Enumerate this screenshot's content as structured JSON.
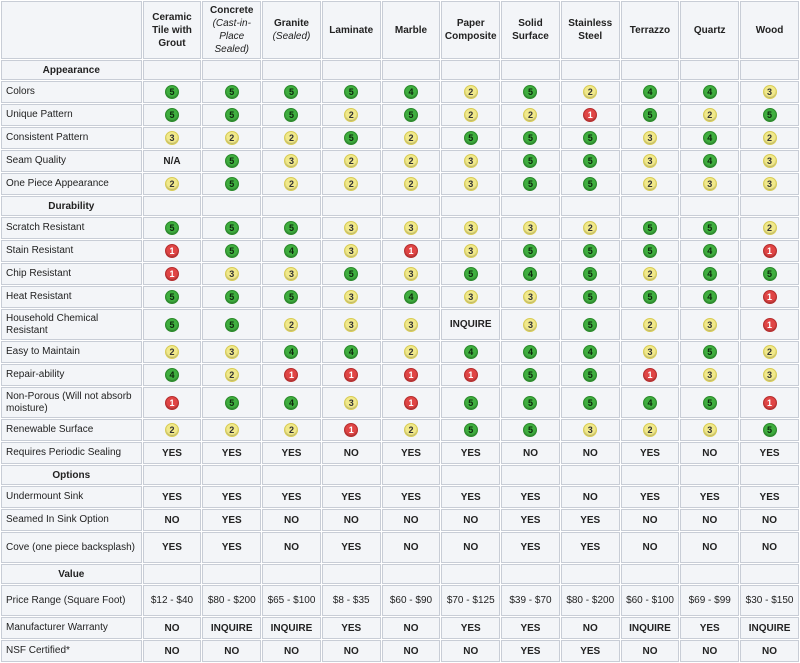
{
  "materials": [
    {
      "name": "Ceramic Tile with Grout",
      "sub": ""
    },
    {
      "name": "Concrete",
      "sub": "(Cast-in-Place Sealed)"
    },
    {
      "name": "Granite",
      "sub": "(Sealed)"
    },
    {
      "name": "Laminate",
      "sub": ""
    },
    {
      "name": "Marble",
      "sub": ""
    },
    {
      "name": "Paper Composite",
      "sub": ""
    },
    {
      "name": "Solid Surface",
      "sub": ""
    },
    {
      "name": "Stainless Steel",
      "sub": ""
    },
    {
      "name": "Terrazzo",
      "sub": ""
    },
    {
      "name": "Quartz",
      "sub": ""
    },
    {
      "name": "Wood",
      "sub": ""
    }
  ],
  "rating_colors": {
    "5": "#3fae3f",
    "4": "#3fae3f",
    "3": "#f1e98a",
    "2": "#f1e98a",
    "1": "#e04545"
  },
  "sections": [
    {
      "title": "Appearance",
      "rows": [
        {
          "label": "Colors",
          "values": [
            "5",
            "5",
            "5",
            "5",
            "4",
            "2",
            "5",
            "2",
            "4",
            "4",
            "3"
          ]
        },
        {
          "label": "Unique Pattern",
          "values": [
            "5",
            "5",
            "5",
            "2",
            "5",
            "2",
            "2",
            "1",
            "5",
            "2",
            "5"
          ]
        },
        {
          "label": "Consistent Pattern",
          "values": [
            "3",
            "2",
            "2",
            "5",
            "2",
            "5",
            "5",
            "5",
            "3",
            "4",
            "2"
          ]
        },
        {
          "label": "Seam Quality",
          "values": [
            "N/A",
            "5",
            "3",
            "2",
            "2",
            "3",
            "5",
            "5",
            "3",
            "4",
            "3"
          ]
        },
        {
          "label": "One Piece Appearance",
          "values": [
            "2",
            "5",
            "2",
            "2",
            "2",
            "3",
            "5",
            "5",
            "2",
            "3",
            "3"
          ]
        }
      ]
    },
    {
      "title": "Durability",
      "rows": [
        {
          "label": "Scratch Resistant",
          "values": [
            "5",
            "5",
            "5",
            "3",
            "3",
            "3",
            "3",
            "2",
            "5",
            "5",
            "2"
          ]
        },
        {
          "label": "Stain Resistant",
          "values": [
            "1",
            "5",
            "4",
            "3",
            "1",
            "3",
            "5",
            "5",
            "5",
            "4",
            "1"
          ]
        },
        {
          "label": "Chip Resistant",
          "values": [
            "1",
            "3",
            "3",
            "5",
            "3",
            "5",
            "4",
            "5",
            "2",
            "4",
            "5"
          ]
        },
        {
          "label": "Heat Resistant",
          "values": [
            "5",
            "5",
            "5",
            "3",
            "4",
            "3",
            "3",
            "5",
            "5",
            "4",
            "1"
          ]
        },
        {
          "label": "Household Chemical Resistant",
          "values": [
            "5",
            "5",
            "2",
            "3",
            "3",
            "INQUIRE",
            "3",
            "5",
            "2",
            "3",
            "1"
          ],
          "tall": true
        },
        {
          "label": "Easy to Maintain",
          "values": [
            "2",
            "3",
            "4",
            "4",
            "2",
            "4",
            "4",
            "4",
            "3",
            "5",
            "2"
          ]
        },
        {
          "label": "Repair-ability",
          "values": [
            "4",
            "2",
            "1",
            "1",
            "1",
            "1",
            "5",
            "5",
            "1",
            "3",
            "3"
          ]
        },
        {
          "label": "Non-Porous (Will not absorb moisture)",
          "values": [
            "1",
            "5",
            "4",
            "3",
            "1",
            "5",
            "5",
            "5",
            "4",
            "5",
            "1"
          ],
          "tall": true
        },
        {
          "label": "Renewable Surface",
          "values": [
            "2",
            "2",
            "2",
            "1",
            "2",
            "5",
            "5",
            "3",
            "2",
            "3",
            "5"
          ]
        },
        {
          "label": "Requires Periodic Sealing",
          "values": [
            "YES",
            "YES",
            "YES",
            "NO",
            "YES",
            "YES",
            "NO",
            "NO",
            "YES",
            "NO",
            "YES"
          ]
        }
      ]
    },
    {
      "title": "Options",
      "rows": [
        {
          "label": "Undermount Sink",
          "values": [
            "YES",
            "YES",
            "YES",
            "YES",
            "YES",
            "YES",
            "YES",
            "NO",
            "YES",
            "YES",
            "YES"
          ]
        },
        {
          "label": "Seamed In Sink Option",
          "values": [
            "NO",
            "YES",
            "NO",
            "NO",
            "NO",
            "NO",
            "YES",
            "YES",
            "NO",
            "NO",
            "NO"
          ]
        },
        {
          "label": "Cove (one piece backsplash)",
          "values": [
            "YES",
            "YES",
            "NO",
            "YES",
            "NO",
            "NO",
            "YES",
            "YES",
            "NO",
            "NO",
            "NO"
          ],
          "tall": true
        }
      ]
    },
    {
      "title": "Value",
      "rows": [
        {
          "label": "Price Range (Square Foot)",
          "values": [
            "$12 - $40",
            "$80 - $200",
            "$65 - $100",
            "$8 - $35",
            "$60 - $90",
            "$70 - $125",
            "$39 - $70",
            "$80 - $200",
            "$60 - $100",
            "$69 - $99",
            "$30 - $150"
          ],
          "tall": true,
          "price": true
        },
        {
          "label": "Manufacturer Warranty",
          "values": [
            "NO",
            "INQUIRE",
            "INQUIRE",
            "YES",
            "NO",
            "YES",
            "YES",
            "NO",
            "INQUIRE",
            "YES",
            "INQUIRE"
          ]
        },
        {
          "label": "NSF Certified*",
          "values": [
            "NO",
            "NO",
            "NO",
            "NO",
            "NO",
            "NO",
            "YES",
            "YES",
            "NO",
            "NO",
            "NO"
          ]
        }
      ]
    }
  ]
}
